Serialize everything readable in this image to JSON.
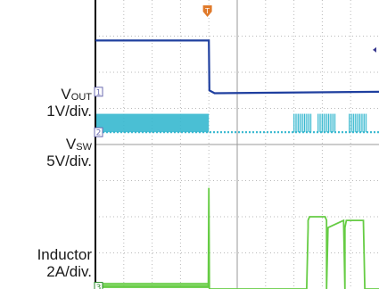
{
  "labels": {
    "vout": {
      "base": "V",
      "sub": "OUT",
      "scale": "1V/div."
    },
    "vsw": {
      "base": "V",
      "sub": "SW",
      "scale": "5V/div."
    },
    "inductor": {
      "name": "Inductor",
      "scale": "2A/div."
    }
  },
  "markers": {
    "ch1": "1",
    "ch2": "2",
    "ch3": "3",
    "trigger": "T"
  },
  "colors": {
    "vout": "#1f3f9f",
    "vsw": "#36b8cf",
    "inductor": "#66cc44",
    "grid": "#b9b9b9",
    "trigger": "#e07a2b"
  },
  "chart_data": {
    "type": "line",
    "xlabel": "",
    "ylabel": "",
    "xlim": [
      0,
      10
    ],
    "ylim": [
      0,
      8
    ],
    "grid": true,
    "series": [
      {
        "id": "vout",
        "x": [
          0,
          4.0,
          4.02,
          4.2,
          10
        ],
        "values": [
          6.88,
          6.88,
          5.5,
          5.42,
          5.46
        ]
      },
      {
        "id": "vsw_low",
        "x": [
          0,
          10
        ],
        "values": [
          4.34,
          4.34
        ]
      },
      {
        "id": "inductor",
        "x": [
          0,
          3.98,
          4.0,
          4.02,
          7.45,
          7.5,
          7.5,
          7.55,
          8.1,
          8.15,
          8.15,
          8.2,
          8.75,
          8.8,
          8.8,
          8.85,
          9.45,
          9.5,
          9.5,
          9.55,
          10
        ],
        "values": [
          0.06,
          0.06,
          2.8,
          0.0,
          0.0,
          1.7,
          1.9,
          2.0,
          2.0,
          1.9,
          0.0,
          1.7,
          1.9,
          0.0,
          1.7,
          1.9,
          1.9,
          0.0,
          0.0,
          0.0,
          0.0
        ]
      }
    ]
  }
}
